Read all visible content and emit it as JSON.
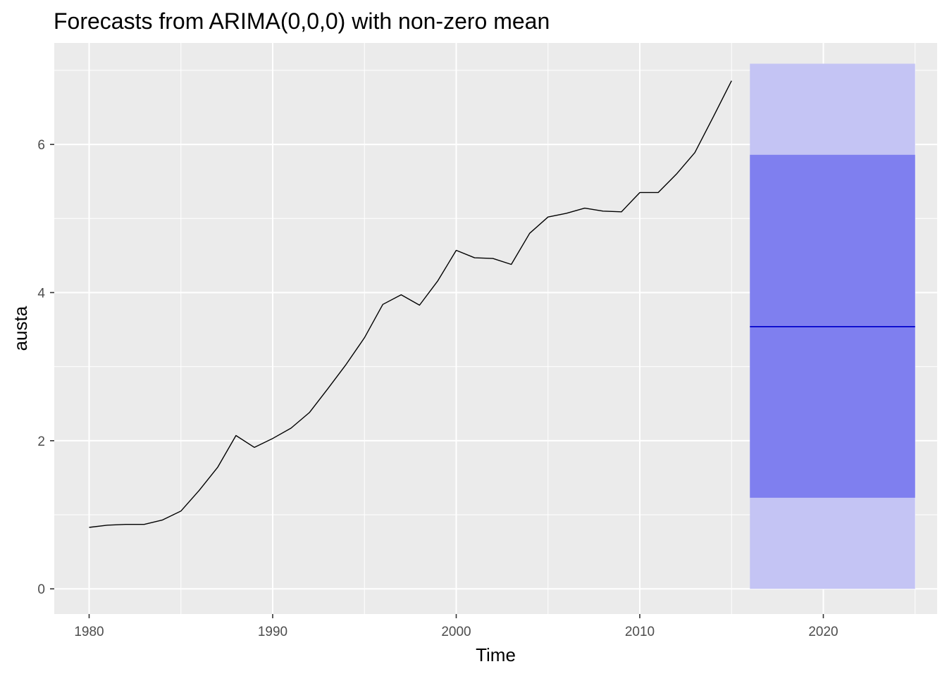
{
  "chart_data": {
    "type": "line",
    "title": "Forecasts from ARIMA(0,0,0) with non-zero mean",
    "xlabel": "Time",
    "ylabel": "austa",
    "xlim": [
      1978.1,
      2026.2
    ],
    "ylim": [
      -0.34,
      7.37
    ],
    "x_ticks": [
      1980,
      1990,
      2000,
      2010,
      2020
    ],
    "x_tick_labels": [
      "1980",
      "1990",
      "2000",
      "2010",
      "2020"
    ],
    "y_ticks": [
      0,
      2,
      4,
      6
    ],
    "y_tick_labels": [
      "0",
      "2",
      "4",
      "6"
    ],
    "grid": true,
    "legend": "none",
    "series": [
      {
        "role": "observed",
        "color": "#000000",
        "x": [
          1980,
          1981,
          1982,
          1983,
          1984,
          1985,
          1986,
          1987,
          1988,
          1989,
          1990,
          1991,
          1992,
          1993,
          1994,
          1995,
          1996,
          1997,
          1998,
          1999,
          2000,
          2001,
          2002,
          2003,
          2004,
          2005,
          2006,
          2007,
          2008,
          2009,
          2010,
          2011,
          2012,
          2013,
          2014,
          2015
        ],
        "values": [
          0.83,
          0.86,
          0.87,
          0.87,
          0.93,
          1.05,
          1.33,
          1.64,
          2.07,
          1.91,
          2.03,
          2.17,
          2.38,
          2.7,
          3.03,
          3.39,
          3.84,
          3.97,
          3.83,
          4.16,
          4.57,
          4.47,
          4.46,
          4.38,
          4.8,
          5.02,
          5.07,
          5.14,
          5.1,
          5.09,
          5.35,
          5.35,
          5.6,
          5.89,
          6.37,
          6.86
        ]
      },
      {
        "role": "forecast-mean",
        "color": "#0000cc",
        "x": [
          2016,
          2025
        ],
        "values": [
          3.54,
          3.54
        ]
      }
    ],
    "intervals": [
      {
        "level": "95%",
        "color": "#c4c4f4",
        "x_range": [
          2016,
          2025
        ],
        "lower": 0.0,
        "upper": 7.09
      },
      {
        "level": "80%",
        "color": "#7f7fef",
        "x_range": [
          2016,
          2025
        ],
        "lower": 1.23,
        "upper": 5.86
      }
    ],
    "colors": {
      "panel_background": "#ebebeb",
      "grid": "#ffffff",
      "tick_text": "#4d4d4d",
      "tick_mark": "#333333"
    }
  }
}
